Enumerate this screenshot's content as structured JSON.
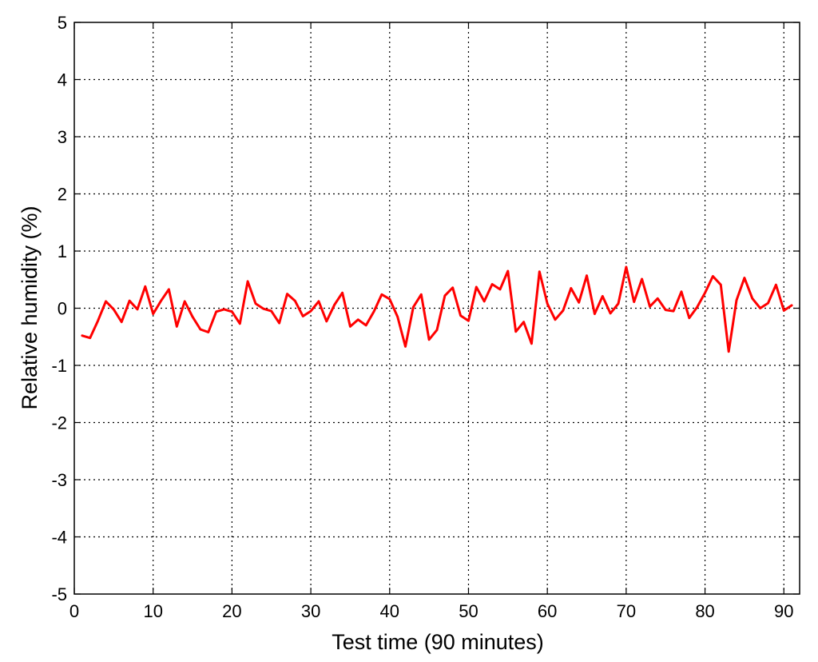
{
  "chart_data": {
    "type": "line",
    "xlabel": "Test time (90 minutes)",
    "ylabel": "Relative humidity (%)",
    "xlim": [
      0,
      92
    ],
    "ylim": [
      -5,
      5
    ],
    "xticks": [
      0,
      10,
      20,
      30,
      40,
      50,
      60,
      70,
      80,
      90
    ],
    "yticks": [
      -5,
      -4,
      -3,
      -2,
      -1,
      0,
      1,
      2,
      3,
      4,
      5
    ],
    "grid": true,
    "grid_style": "dotted",
    "series": [
      {
        "color": "#ff0000",
        "x": [
          1,
          2,
          3,
          4,
          5,
          6,
          7,
          8,
          9,
          10,
          11,
          12,
          13,
          14,
          15,
          16,
          17,
          18,
          19,
          20,
          21,
          22,
          23,
          24,
          25,
          26,
          27,
          28,
          29,
          30,
          31,
          32,
          33,
          34,
          35,
          36,
          37,
          38,
          39,
          40,
          41,
          42,
          43,
          44,
          45,
          46,
          47,
          48,
          49,
          50,
          51,
          52,
          53,
          54,
          55,
          56,
          57,
          58,
          59,
          60,
          61,
          62,
          63,
          64,
          65,
          66,
          67,
          68,
          69,
          70,
          71,
          72,
          73,
          74,
          75,
          76,
          77,
          78,
          79,
          80,
          81,
          82,
          83,
          84,
          85,
          86,
          87,
          88,
          89,
          90,
          91
        ],
        "y": [
          -0.48,
          -0.52,
          -0.22,
          0.12,
          -0.02,
          -0.24,
          0.13,
          -0.02,
          0.38,
          -0.1,
          0.13,
          0.33,
          -0.32,
          0.12,
          -0.15,
          -0.37,
          -0.42,
          -0.06,
          -0.02,
          -0.06,
          -0.27,
          0.47,
          0.08,
          -0.01,
          -0.05,
          -0.26,
          0.25,
          0.13,
          -0.14,
          -0.05,
          0.12,
          -0.23,
          0.06,
          0.27,
          -0.32,
          -0.2,
          -0.3,
          -0.06,
          0.24,
          0.16,
          -0.15,
          -0.67,
          0.02,
          0.24,
          -0.55,
          -0.38,
          0.22,
          0.36,
          -0.13,
          -0.22,
          0.37,
          0.12,
          0.42,
          0.33,
          0.65,
          -0.41,
          -0.24,
          -0.62,
          0.64,
          0.08,
          -0.2,
          -0.04,
          0.35,
          0.1,
          0.57,
          -0.1,
          0.21,
          -0.09,
          0.08,
          0.72,
          0.11,
          0.51,
          0.03,
          0.17,
          -0.03,
          -0.05,
          0.29,
          -0.17,
          0.02,
          0.27,
          0.56,
          0.41,
          -0.76,
          0.14,
          0.53,
          0.17,
          0.0,
          0.09,
          0.41,
          -0.04,
          0.05
        ]
      }
    ]
  }
}
